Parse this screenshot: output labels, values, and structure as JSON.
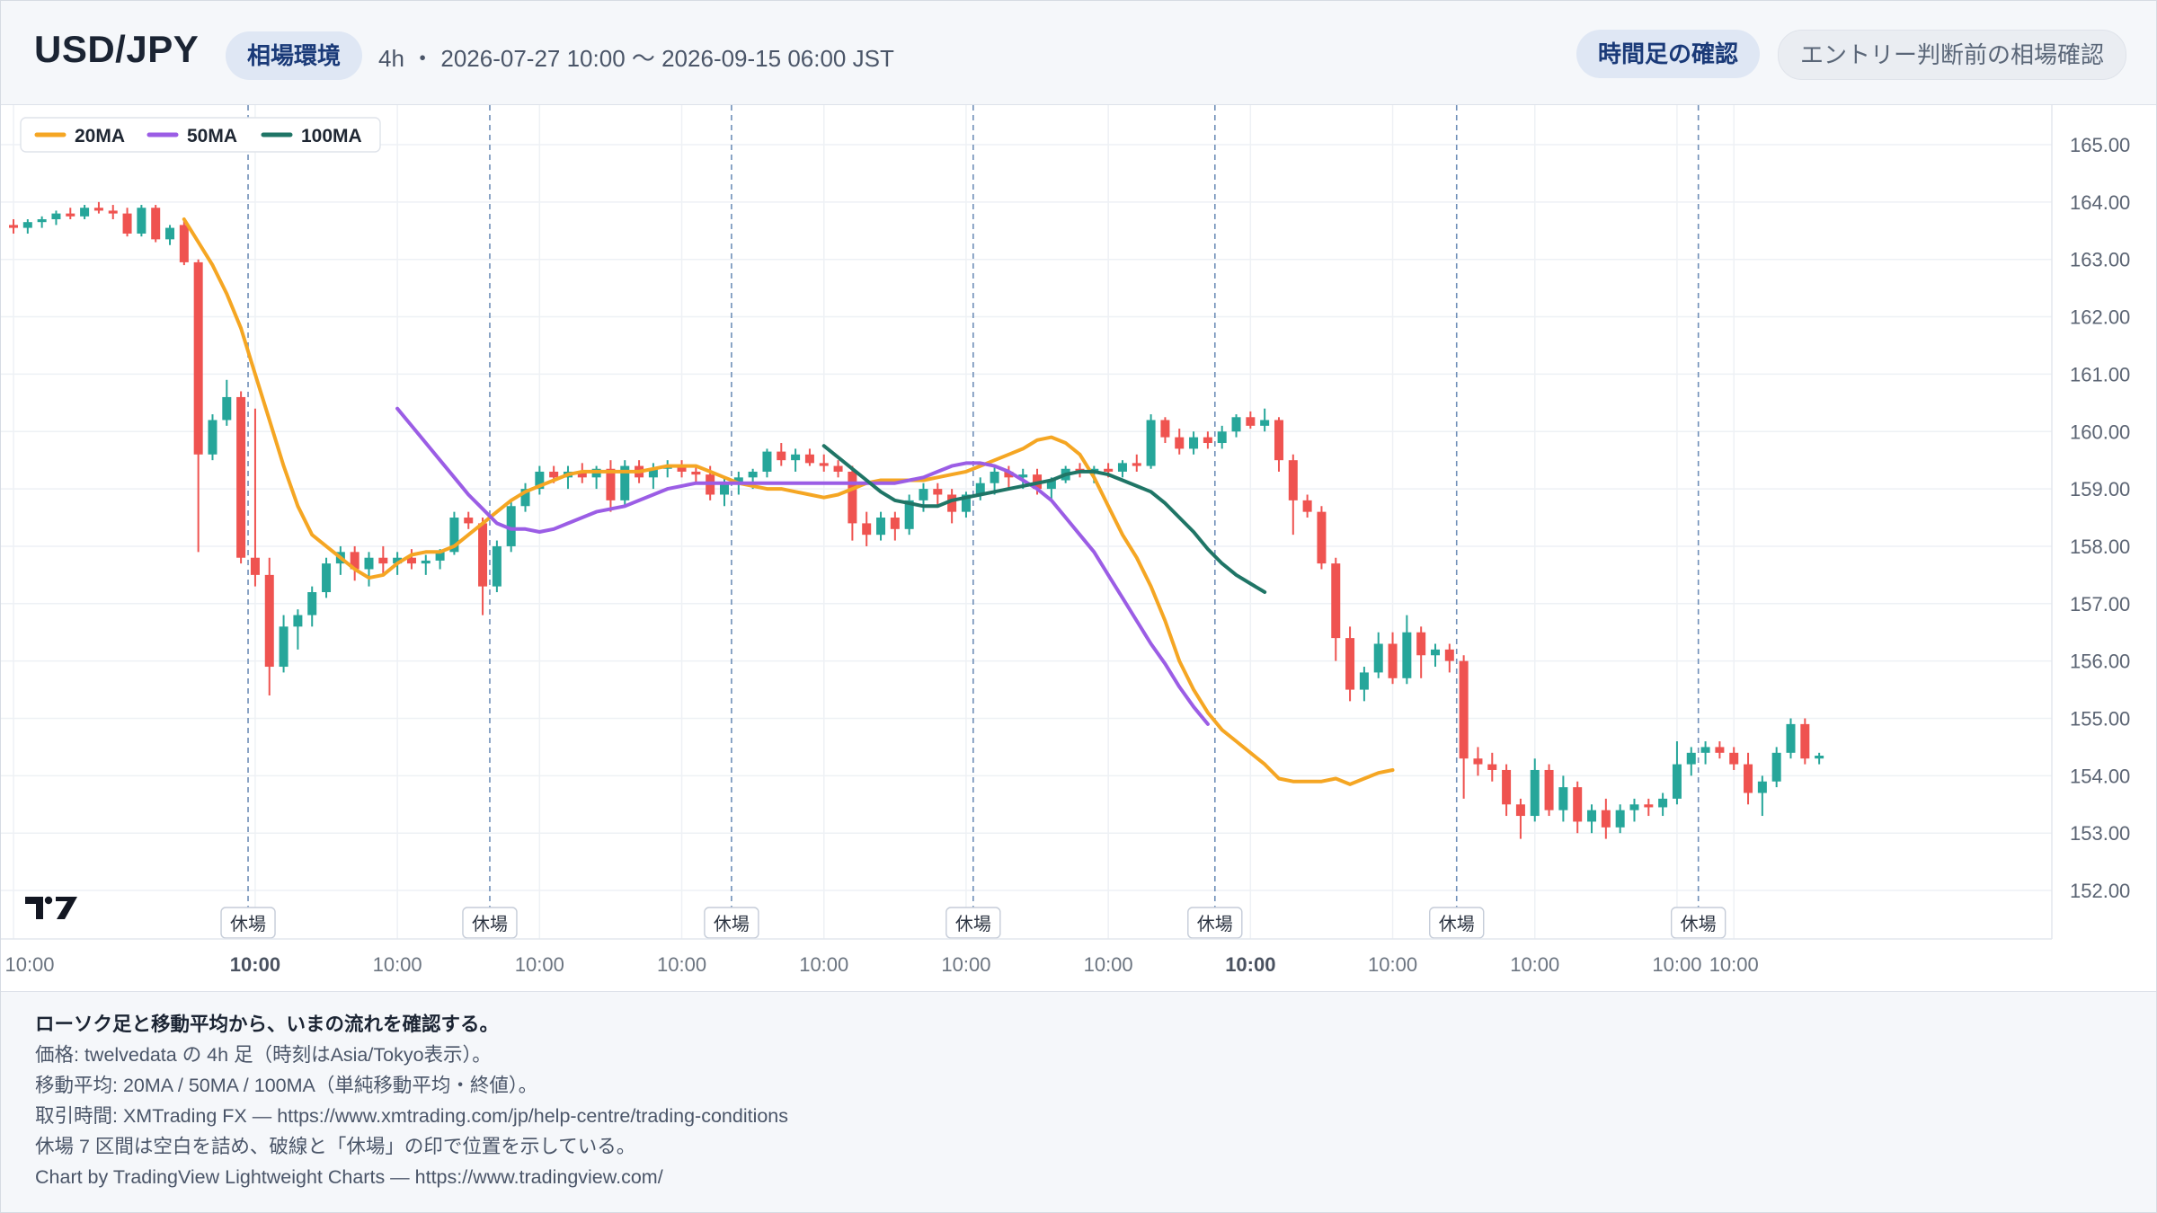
{
  "header": {
    "title": "USD/JPY",
    "badge": "相場環境",
    "meta": "4h ・ 2026-07-27 10:00 〜 2026-09-15 06:00 JST",
    "button_primary": "時間足の確認",
    "button_secondary": "エントリー判断前の相場確認"
  },
  "footer": {
    "lead": "ローソク足と移動平均から、いまの流れを確認する。",
    "line1": "価格: twelvedata の 4h 足（時刻はAsia/Tokyo表示）。",
    "line2": "移動平均: 20MA / 50MA / 100MA（単純移動平均・終値）。",
    "line3": "取引時間: XMTrading FX — https://www.xmtrading.com/jp/help-centre/trading-conditions",
    "line4": "休場 7 区間は空白を詰め、破線と「休場」の印で位置を示している。",
    "line5": "Chart by TradingView Lightweight Charts — https://www.tradingview.com/"
  },
  "colors": {
    "up": "#26a69a",
    "down": "#ef5350",
    "ma20": "#f5a623",
    "ma50": "#9b5de5",
    "ma100": "#1f7566"
  },
  "chart_data": {
    "type": "candlestick",
    "symbol": "USD/JPY",
    "timeframe": "4h",
    "ylim": [
      151.5,
      165.5
    ],
    "y_ticks": [
      165.0,
      164.0,
      163.0,
      162.0,
      161.0,
      160.0,
      159.0,
      158.0,
      157.0,
      156.0,
      155.0,
      154.0,
      153.0,
      152.0
    ],
    "x_tick_labels": [
      "10:00",
      "10:00",
      "10:00",
      "10:00",
      "10:00",
      "10:00",
      "10:00",
      "10:00",
      "10:00",
      "10:00",
      "10:00",
      "10:00",
      "10:00"
    ],
    "x_tick_index": [
      0,
      17,
      27,
      37,
      47,
      57,
      67,
      77,
      87,
      97,
      107,
      117,
      121
    ],
    "x_tick_bold": [
      false,
      true,
      false,
      false,
      false,
      false,
      false,
      false,
      true,
      false,
      false,
      false,
      false
    ],
    "closure_label": "休場",
    "closure_index": [
      16.5,
      33.5,
      50.5,
      67.5,
      84.5,
      101.5,
      118.5
    ],
    "legend": [
      {
        "name": "20MA",
        "color": "#f5a623"
      },
      {
        "name": "50MA",
        "color": "#9b5de5"
      },
      {
        "name": "100MA",
        "color": "#1f7566"
      }
    ],
    "candles": [
      [
        163.6,
        163.7,
        163.45,
        163.55
      ],
      [
        163.55,
        163.7,
        163.45,
        163.65
      ],
      [
        163.65,
        163.75,
        163.55,
        163.7
      ],
      [
        163.7,
        163.85,
        163.6,
        163.8
      ],
      [
        163.8,
        163.9,
        163.7,
        163.75
      ],
      [
        163.75,
        163.95,
        163.7,
        163.9
      ],
      [
        163.9,
        164.0,
        163.8,
        163.85
      ],
      [
        163.85,
        163.95,
        163.7,
        163.8
      ],
      [
        163.8,
        163.9,
        163.4,
        163.45
      ],
      [
        163.45,
        163.95,
        163.4,
        163.9
      ],
      [
        163.9,
        163.95,
        163.3,
        163.35
      ],
      [
        163.35,
        163.6,
        163.25,
        163.55
      ],
      [
        163.6,
        163.7,
        162.9,
        162.95
      ],
      [
        162.95,
        163.0,
        157.9,
        159.6
      ],
      [
        159.6,
        160.3,
        159.5,
        160.2
      ],
      [
        160.2,
        160.9,
        160.1,
        160.6
      ],
      [
        160.6,
        160.7,
        157.7,
        157.8
      ],
      [
        157.8,
        160.4,
        157.3,
        157.5
      ],
      [
        157.5,
        157.8,
        155.4,
        155.9
      ],
      [
        155.9,
        156.8,
        155.8,
        156.6
      ],
      [
        156.6,
        156.9,
        156.2,
        156.8
      ],
      [
        156.8,
        157.3,
        156.6,
        157.2
      ],
      [
        157.2,
        157.8,
        157.1,
        157.7
      ],
      [
        157.7,
        158.0,
        157.5,
        157.9
      ],
      [
        157.9,
        158.0,
        157.4,
        157.6
      ],
      [
        157.6,
        157.9,
        157.3,
        157.8
      ],
      [
        157.8,
        158.0,
        157.5,
        157.7
      ],
      [
        157.7,
        157.9,
        157.5,
        157.8
      ],
      [
        157.8,
        157.95,
        157.6,
        157.7
      ],
      [
        157.7,
        157.85,
        157.5,
        157.75
      ],
      [
        157.75,
        157.95,
        157.6,
        157.9
      ],
      [
        157.9,
        158.6,
        157.85,
        158.5
      ],
      [
        158.5,
        158.6,
        158.3,
        158.4
      ],
      [
        158.4,
        158.5,
        156.8,
        157.3
      ],
      [
        157.3,
        158.1,
        157.2,
        158.0
      ],
      [
        158.0,
        158.8,
        157.9,
        158.7
      ],
      [
        158.7,
        159.1,
        158.6,
        159.0
      ],
      [
        159.0,
        159.4,
        158.9,
        159.3
      ],
      [
        159.3,
        159.4,
        159.1,
        159.2
      ],
      [
        159.2,
        159.4,
        159.0,
        159.3
      ],
      [
        159.3,
        159.45,
        159.1,
        159.2
      ],
      [
        159.2,
        159.4,
        159.0,
        159.35
      ],
      [
        159.35,
        159.5,
        158.6,
        158.8
      ],
      [
        158.8,
        159.5,
        158.7,
        159.4
      ],
      [
        159.4,
        159.5,
        159.1,
        159.2
      ],
      [
        159.2,
        159.45,
        159.0,
        159.35
      ],
      [
        159.35,
        159.5,
        159.2,
        159.4
      ],
      [
        159.4,
        159.5,
        159.2,
        159.3
      ],
      [
        159.3,
        159.4,
        159.1,
        159.25
      ],
      [
        159.25,
        159.4,
        158.8,
        158.9
      ],
      [
        158.9,
        159.2,
        158.7,
        159.1
      ],
      [
        159.1,
        159.3,
        158.9,
        159.2
      ],
      [
        159.2,
        159.35,
        159.0,
        159.3
      ],
      [
        159.3,
        159.7,
        159.2,
        159.65
      ],
      [
        159.65,
        159.8,
        159.4,
        159.5
      ],
      [
        159.5,
        159.7,
        159.3,
        159.6
      ],
      [
        159.6,
        159.7,
        159.4,
        159.45
      ],
      [
        159.45,
        159.6,
        159.3,
        159.4
      ],
      [
        159.4,
        159.5,
        159.2,
        159.3
      ],
      [
        159.3,
        159.4,
        158.1,
        158.4
      ],
      [
        158.4,
        158.6,
        158.0,
        158.2
      ],
      [
        158.2,
        158.6,
        158.1,
        158.5
      ],
      [
        158.5,
        158.6,
        158.1,
        158.3
      ],
      [
        158.3,
        158.9,
        158.2,
        158.8
      ],
      [
        158.8,
        159.1,
        158.6,
        159.0
      ],
      [
        159.0,
        159.1,
        158.7,
        158.9
      ],
      [
        158.9,
        159.0,
        158.4,
        158.6
      ],
      [
        158.6,
        158.95,
        158.5,
        158.9
      ],
      [
        158.9,
        159.2,
        158.8,
        159.1
      ],
      [
        159.1,
        159.4,
        158.9,
        159.3
      ],
      [
        159.3,
        159.4,
        159.0,
        159.2
      ],
      [
        159.2,
        159.35,
        159.0,
        159.25
      ],
      [
        159.25,
        159.35,
        158.9,
        159.0
      ],
      [
        159.0,
        159.2,
        158.8,
        159.15
      ],
      [
        159.15,
        159.4,
        159.1,
        159.35
      ],
      [
        159.35,
        159.45,
        159.2,
        159.3
      ],
      [
        159.3,
        159.4,
        159.1,
        159.35
      ],
      [
        159.35,
        159.45,
        159.2,
        159.3
      ],
      [
        159.3,
        159.5,
        159.2,
        159.45
      ],
      [
        159.45,
        159.6,
        159.3,
        159.4
      ],
      [
        159.4,
        160.3,
        159.35,
        160.2
      ],
      [
        160.2,
        160.25,
        159.8,
        159.9
      ],
      [
        159.9,
        160.05,
        159.6,
        159.7
      ],
      [
        159.7,
        160.0,
        159.6,
        159.9
      ],
      [
        159.9,
        160.0,
        159.7,
        159.8
      ],
      [
        159.8,
        160.1,
        159.7,
        160.0
      ],
      [
        160.0,
        160.3,
        159.9,
        160.25
      ],
      [
        160.25,
        160.35,
        160.05,
        160.1
      ],
      [
        160.1,
        160.4,
        160.0,
        160.2
      ],
      [
        160.2,
        160.25,
        159.3,
        159.5
      ],
      [
        159.5,
        159.6,
        158.2,
        158.8
      ],
      [
        158.8,
        158.9,
        158.5,
        158.6
      ],
      [
        158.6,
        158.7,
        157.6,
        157.7
      ],
      [
        157.7,
        157.8,
        156.0,
        156.4
      ],
      [
        156.4,
        156.6,
        155.3,
        155.5
      ],
      [
        155.5,
        155.9,
        155.3,
        155.8
      ],
      [
        155.8,
        156.5,
        155.7,
        156.3
      ],
      [
        156.3,
        156.5,
        155.6,
        155.7
      ],
      [
        155.7,
        156.8,
        155.6,
        156.5
      ],
      [
        156.5,
        156.6,
        155.7,
        156.1
      ],
      [
        156.1,
        156.3,
        155.9,
        156.2
      ],
      [
        156.2,
        156.3,
        155.8,
        156.0
      ],
      [
        156.0,
        156.1,
        153.6,
        154.3
      ],
      [
        154.3,
        154.5,
        154.0,
        154.2
      ],
      [
        154.2,
        154.4,
        153.9,
        154.1
      ],
      [
        154.1,
        154.2,
        153.3,
        153.5
      ],
      [
        153.5,
        153.6,
        152.9,
        153.3
      ],
      [
        153.3,
        154.3,
        153.2,
        154.1
      ],
      [
        154.1,
        154.2,
        153.3,
        153.4
      ],
      [
        153.4,
        154.0,
        153.2,
        153.8
      ],
      [
        153.8,
        153.9,
        153.0,
        153.2
      ],
      [
        153.2,
        153.5,
        153.0,
        153.4
      ],
      [
        153.4,
        153.6,
        152.9,
        153.1
      ],
      [
        153.1,
        153.5,
        153.0,
        153.4
      ],
      [
        153.4,
        153.6,
        153.2,
        153.5
      ],
      [
        153.5,
        153.6,
        153.3,
        153.45
      ],
      [
        153.45,
        153.7,
        153.3,
        153.6
      ],
      [
        153.6,
        154.6,
        153.5,
        154.2
      ],
      [
        154.2,
        154.5,
        154.0,
        154.4
      ],
      [
        154.4,
        154.6,
        154.2,
        154.5
      ],
      [
        154.5,
        154.6,
        154.3,
        154.4
      ],
      [
        154.4,
        154.5,
        154.1,
        154.2
      ],
      [
        154.2,
        154.4,
        153.5,
        153.7
      ],
      [
        153.7,
        154.0,
        153.3,
        153.9
      ],
      [
        153.9,
        154.5,
        153.8,
        154.4
      ],
      [
        154.4,
        155.0,
        154.3,
        154.9
      ],
      [
        154.9,
        155.0,
        154.2,
        154.3
      ],
      [
        154.3,
        154.4,
        154.2,
        154.35
      ]
    ],
    "series": [
      {
        "name": "20MA",
        "color": "#f5a623",
        "start_index": 12,
        "values": [
          163.7,
          163.3,
          162.9,
          162.4,
          161.8,
          161.0,
          160.2,
          159.4,
          158.7,
          158.2,
          158.0,
          157.8,
          157.6,
          157.45,
          157.5,
          157.7,
          157.85,
          157.9,
          157.9,
          158.0,
          158.2,
          158.4,
          158.6,
          158.8,
          158.95,
          159.05,
          159.15,
          159.25,
          159.3,
          159.3,
          159.3,
          159.3,
          159.3,
          159.35,
          159.4,
          159.4,
          159.4,
          159.3,
          159.2,
          159.1,
          159.05,
          159.0,
          159.0,
          158.95,
          158.9,
          158.85,
          158.9,
          159.0,
          159.1,
          159.15,
          159.15,
          159.15,
          159.15,
          159.2,
          159.25,
          159.3,
          159.4,
          159.5,
          159.6,
          159.7,
          159.85,
          159.9,
          159.8,
          159.6,
          159.2,
          158.7,
          158.2,
          157.8,
          157.3,
          156.7,
          156.0,
          155.5,
          155.1,
          154.8,
          154.6,
          154.4,
          154.2,
          153.95,
          153.9,
          153.9,
          153.9,
          153.95,
          153.85,
          153.95,
          154.05,
          154.1
        ]
      },
      {
        "name": "50MA",
        "color": "#9b5de5",
        "start_index": 27,
        "values": [
          160.4,
          160.1,
          159.8,
          159.5,
          159.2,
          158.9,
          158.65,
          158.4,
          158.3,
          158.3,
          158.25,
          158.3,
          158.4,
          158.5,
          158.6,
          158.65,
          158.7,
          158.8,
          158.9,
          159.0,
          159.05,
          159.1,
          159.1,
          159.1,
          159.1,
          159.1,
          159.1,
          159.1,
          159.1,
          159.1,
          159.1,
          159.1,
          159.1,
          159.1,
          159.1,
          159.1,
          159.15,
          159.2,
          159.3,
          159.4,
          159.45,
          159.45,
          159.4,
          159.3,
          159.15,
          159.0,
          158.8,
          158.5,
          158.2,
          157.9,
          157.5,
          157.1,
          156.7,
          156.3,
          155.95,
          155.55,
          155.2,
          154.9
        ]
      },
      {
        "name": "100MA",
        "color": "#1f7566",
        "start_index": 57,
        "values": [
          159.75,
          159.55,
          159.35,
          159.15,
          158.95,
          158.8,
          158.75,
          158.7,
          158.7,
          158.8,
          158.85,
          158.9,
          158.95,
          159.0,
          159.05,
          159.1,
          159.15,
          159.25,
          159.3,
          159.3,
          159.25,
          159.15,
          159.05,
          158.95,
          158.75,
          158.5,
          158.25,
          157.95,
          157.7,
          157.5,
          157.35,
          157.2
        ]
      }
    ]
  }
}
